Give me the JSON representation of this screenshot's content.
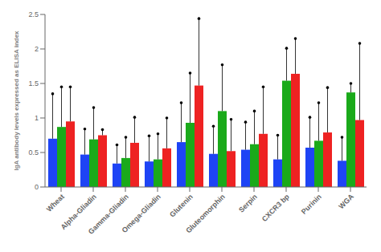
{
  "chart_data": {
    "type": "bar",
    "ylabel": "IgA antibody levels expressed as ELISA index",
    "categories": [
      "Wheat",
      "Alpha-Gliadin",
      "Gamma-Gliadin",
      "Omega-Gliadin",
      "Glutenin",
      "Gluteomorphin",
      "Serpin",
      "CXCR3 bp",
      "Purinin",
      "WGA"
    ],
    "series": [
      {
        "color": "#1e44f5",
        "values": [
          0.7,
          0.47,
          0.34,
          0.37,
          0.65,
          0.48,
          0.54,
          0.4,
          0.57,
          0.38
        ],
        "tops": [
          1.35,
          0.84,
          0.61,
          0.74,
          1.22,
          0.88,
          0.94,
          0.75,
          1.01,
          0.72
        ]
      },
      {
        "color": "#1aaa1a",
        "values": [
          0.87,
          0.69,
          0.42,
          0.4,
          0.93,
          1.1,
          0.62,
          1.54,
          0.67,
          1.37
        ],
        "tops": [
          1.45,
          1.15,
          0.72,
          0.77,
          1.65,
          1.77,
          1.1,
          2.01,
          1.22,
          1.5
        ]
      },
      {
        "color": "#ee2222",
        "values": [
          0.95,
          0.75,
          0.64,
          0.56,
          1.47,
          0.52,
          0.77,
          1.64,
          0.79,
          0.97
        ],
        "tops": [
          1.45,
          0.83,
          1.01,
          1.0,
          2.44,
          0.98,
          1.45,
          2.15,
          1.44,
          2.08
        ]
      }
    ],
    "ylim": [
      0,
      2.5
    ],
    "yticks": [
      0,
      0.5,
      1,
      1.5,
      2,
      2.5
    ],
    "grid": false
  }
}
